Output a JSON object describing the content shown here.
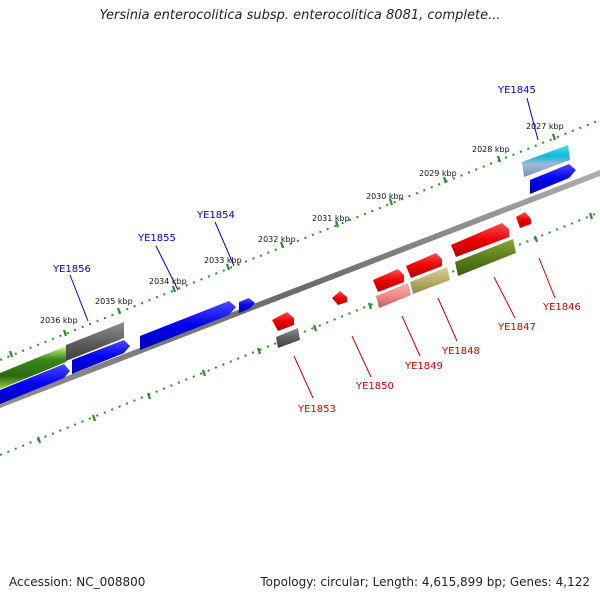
{
  "header": {
    "title": "Yersinia enterocolitica subsp. enterocolitica 8081, complete..."
  },
  "footer": {
    "accession": "Accession: NC_008800",
    "summary": "Topology: circular; Length: 4,615,899 bp; Genes: 4,122"
  },
  "ruler_ticks": [
    "2027 kbp",
    "2028 kbp",
    "2029 kbp",
    "2030 kbp",
    "2031 kbp",
    "2032 kbp",
    "2033 kbp",
    "2034 kbp",
    "2035 kbp",
    "2036 kbp"
  ],
  "gene_labels": {
    "forward": [
      "YE1845",
      "YE1854",
      "YE1855",
      "YE1856"
    ],
    "reverse": [
      "YE1846",
      "YE1847",
      "YE1848",
      "YE1849",
      "YE1850",
      "YE1853"
    ]
  },
  "colors": {
    "forward_label": "#0000cc",
    "reverse_label": "#cc0000",
    "tick_dots": "#2e8b2e",
    "backbone": "#7a7a7a"
  }
}
